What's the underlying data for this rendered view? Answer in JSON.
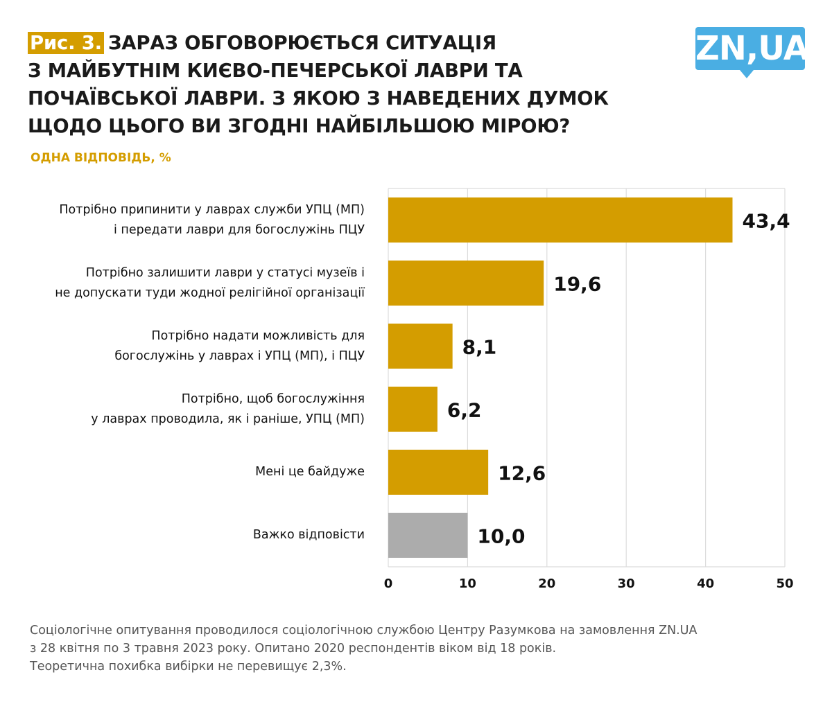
{
  "header": {
    "figure_label": "Рис. 3.",
    "title_lines": [
      "ЗАРАЗ ОБГОВОРЮЄТЬСЯ СИТУАЦІЯ",
      "З МАЙБУТНІМ КИЄВО-ПЕЧЕРСЬКОЇ ЛАВРИ ТА",
      "ПОЧАЇВСЬКОЇ ЛАВРИ. З ЯКОЮ З НАВЕДЕНИХ ДУМОК",
      "ЩОДО ЦЬОГО ВИ ЗГОДНІ НАЙБІЛЬШОЮ МІРОЮ?"
    ],
    "subtitle": "ОДНА ВІДПОВІДЬ, %"
  },
  "logo": {
    "text": "ZN,UA",
    "color": "#4aaee3"
  },
  "chart_data": {
    "type": "bar",
    "orientation": "horizontal",
    "title": "ЗАРАЗ ОБГОВОРЮЄТЬСЯ СИТУАЦІЯ З МАЙБУТНІМ КИЄВО-ПЕЧЕРСЬКОЇ ЛАВРИ ТА ПОЧАЇВСЬКОЇ ЛАВРИ. З ЯКОЮ З НАВЕДЕНИХ ДУМОК ЩОДО ЦЬОГО ВИ ЗГОДНІ НАЙБІЛЬШОЮ МІРОЮ?",
    "subtitle": "ОДНА ВІДПОВІДЬ, %",
    "categories": [
      [
        "Потрібно припинити у лаврах служби УПЦ (МП)",
        "і передати лаври для богослужінь ПЦУ"
      ],
      [
        "Потрібно залишити лаври у статусі музеїв і",
        "не допускати туди жодної релігійної організації"
      ],
      [
        "Потрібно надати можливість для",
        "богослужінь у лаврах і УПЦ (МП), і ПЦУ"
      ],
      [
        "Потрібно, щоб богослужіння",
        "у лаврах проводила, як і раніше, УПЦ (МП)"
      ],
      [
        "Мені це байдуже"
      ],
      [
        "Важко відповісти"
      ]
    ],
    "values": [
      43.4,
      19.6,
      8.1,
      6.2,
      12.6,
      10.0
    ],
    "value_labels": [
      "43,4",
      "19,6",
      "8,1",
      "6,2",
      "12,6",
      "10,0"
    ],
    "colors": [
      "#d49d00",
      "#d49d00",
      "#d49d00",
      "#d49d00",
      "#d49d00",
      "#acacac"
    ],
    "xlim": [
      0,
      50
    ],
    "xticks": [
      0,
      10,
      20,
      30,
      40,
      50
    ],
    "xtick_labels": [
      "0",
      "10",
      "20",
      "30",
      "40",
      "50"
    ],
    "xlabel": "",
    "ylabel": "",
    "grid": true,
    "legend": "none"
  },
  "footer": {
    "lines": [
      "Соціологічне опитування проводилося соціологічною службою Центру Разумкова на замовлення ZN.UA",
      "з 28 квітня по 3 травня 2023 року. Опитано 2020 респондентів віком від 18 років.",
      "Теоретична похибка вибірки не перевищує 2,3%."
    ]
  }
}
